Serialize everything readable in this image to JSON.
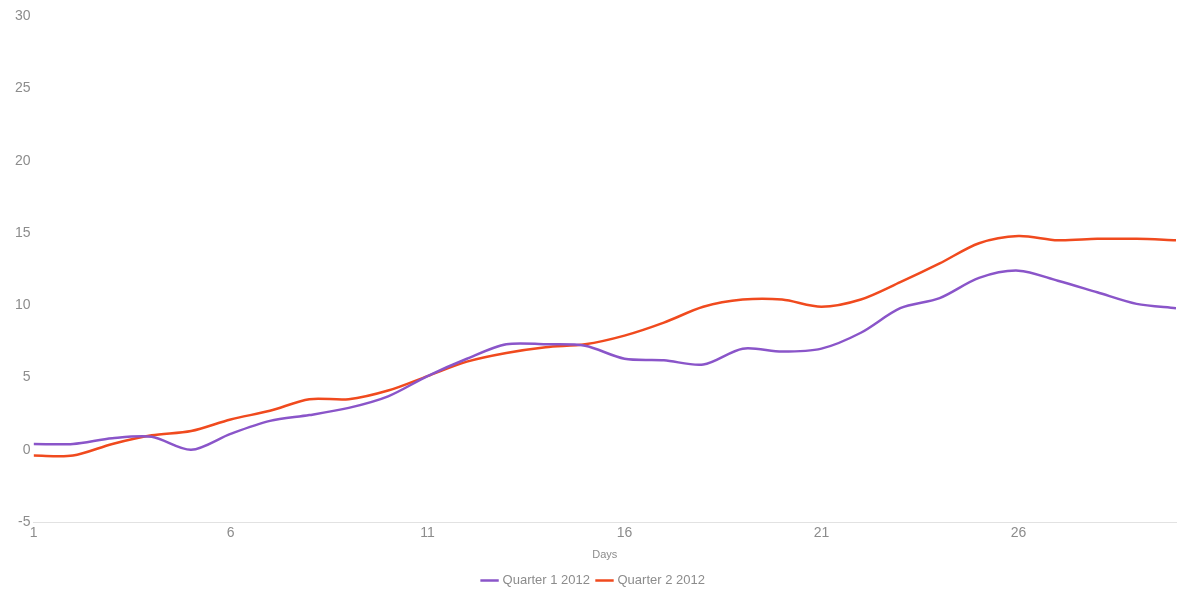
{
  "chart_data": {
    "type": "line",
    "x_label": "Days",
    "x": [
      1,
      2,
      3,
      4,
      5,
      6,
      7,
      8,
      9,
      10,
      11,
      12,
      13,
      14,
      15,
      16,
      17,
      18,
      19,
      20,
      21,
      22,
      23,
      24,
      25,
      26,
      27,
      28,
      29,
      30
    ],
    "series": [
      {
        "name": "Quarter 1 2012",
        "color": "#8a55c9",
        "values": [
          0.4,
          0.4,
          0.8,
          0.9,
          0,
          1.1,
          2.0,
          2.4,
          2.9,
          3.7,
          5.1,
          6.3,
          7.3,
          7.3,
          7.2,
          6.3,
          6.2,
          5.9,
          7.0,
          6.8,
          7.0,
          8.1,
          9.8,
          10.5,
          11.9,
          12.4,
          11.7,
          10.9,
          10.1,
          9.8
        ]
      },
      {
        "name": "Quarter 2 2012",
        "color": "#f04a1e",
        "values": [
          -0.4,
          -0.4,
          0.4,
          1.0,
          1.3,
          2.1,
          2.7,
          3.5,
          3.5,
          4.1,
          5.1,
          6.1,
          6.7,
          7.1,
          7.3,
          7.9,
          8.8,
          9.9,
          10.4,
          10.4,
          9.9,
          10.4,
          11.6,
          12.9,
          14.3,
          14.8,
          14.5,
          14.6,
          14.6,
          14.5
        ]
      }
    ],
    "xlim": [
      1,
      30
    ],
    "xticks": [
      1,
      6,
      11,
      16,
      21,
      26
    ],
    "ylim": [
      -5,
      30
    ],
    "yticks": [
      -5,
      0,
      5,
      10,
      15,
      20,
      25,
      30
    ],
    "grid": false,
    "legend": "bottom"
  }
}
